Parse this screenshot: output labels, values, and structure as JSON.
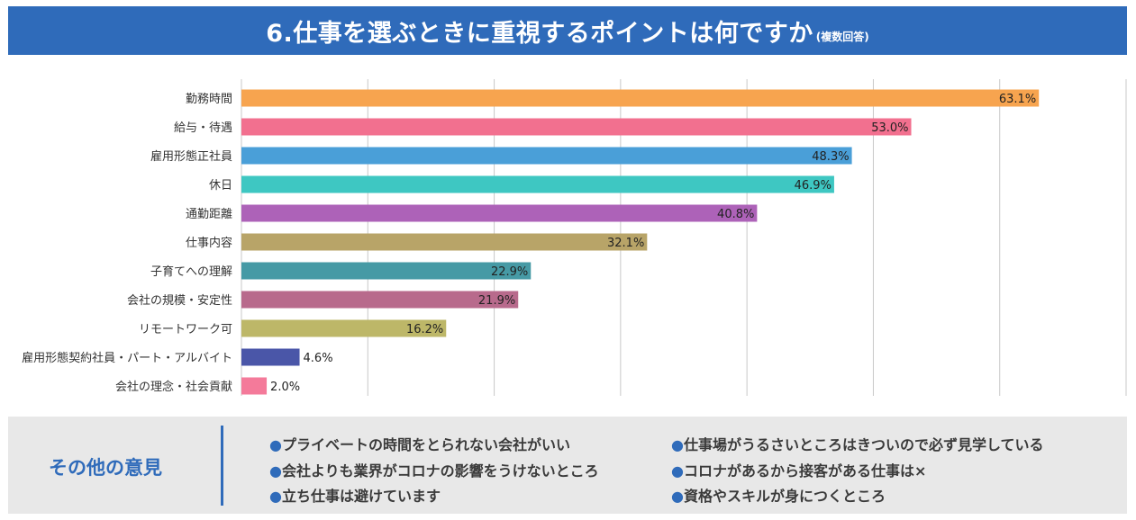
{
  "header": {
    "title": "6.仕事を選ぶときに重視するポイントは何ですか",
    "subtitle": "(複数回答)"
  },
  "chart_data": {
    "type": "bar",
    "orientation": "horizontal",
    "categories": [
      "勤務時間",
      "給与・待遇",
      "雇用形態正社員",
      "休日",
      "通勤距離",
      "仕事内容",
      "子育てへの理解",
      "会社の規模・安定性",
      "リモートワーク可",
      "雇用形態契約社員・パート・アルバイト",
      "会社の理念・社会貢献"
    ],
    "values": [
      63.1,
      53.0,
      48.3,
      46.9,
      40.8,
      32.1,
      22.9,
      21.9,
      16.2,
      4.6,
      2.0
    ],
    "value_labels": [
      "63.1%",
      "53.0%",
      "48.3%",
      "46.9%",
      "40.8%",
      "32.1%",
      "22.9%",
      "21.9%",
      "16.2%",
      "4.6%",
      "2.0%"
    ],
    "colors": [
      "#f7a44f",
      "#f2708f",
      "#4a9fd8",
      "#3ec7c2",
      "#ad62b8",
      "#b8a468",
      "#469aa5",
      "#b86a8c",
      "#bdb768",
      "#4a56a8",
      "#f47a9a"
    ],
    "xlim": [
      0,
      70
    ],
    "grid": true,
    "units": "%"
  },
  "opinions": {
    "heading": "その他の意見",
    "bullet": "●",
    "left": [
      "プライベートの時間をとられない会社がいい",
      "会社よりも業界がコロナの影響をうけないところ",
      "立ち仕事は避けています"
    ],
    "right": [
      "仕事場がうるさいところはきついので必ず見学している",
      "コロナがあるから接客がある仕事は×",
      "資格やスキルが身につくところ"
    ]
  }
}
